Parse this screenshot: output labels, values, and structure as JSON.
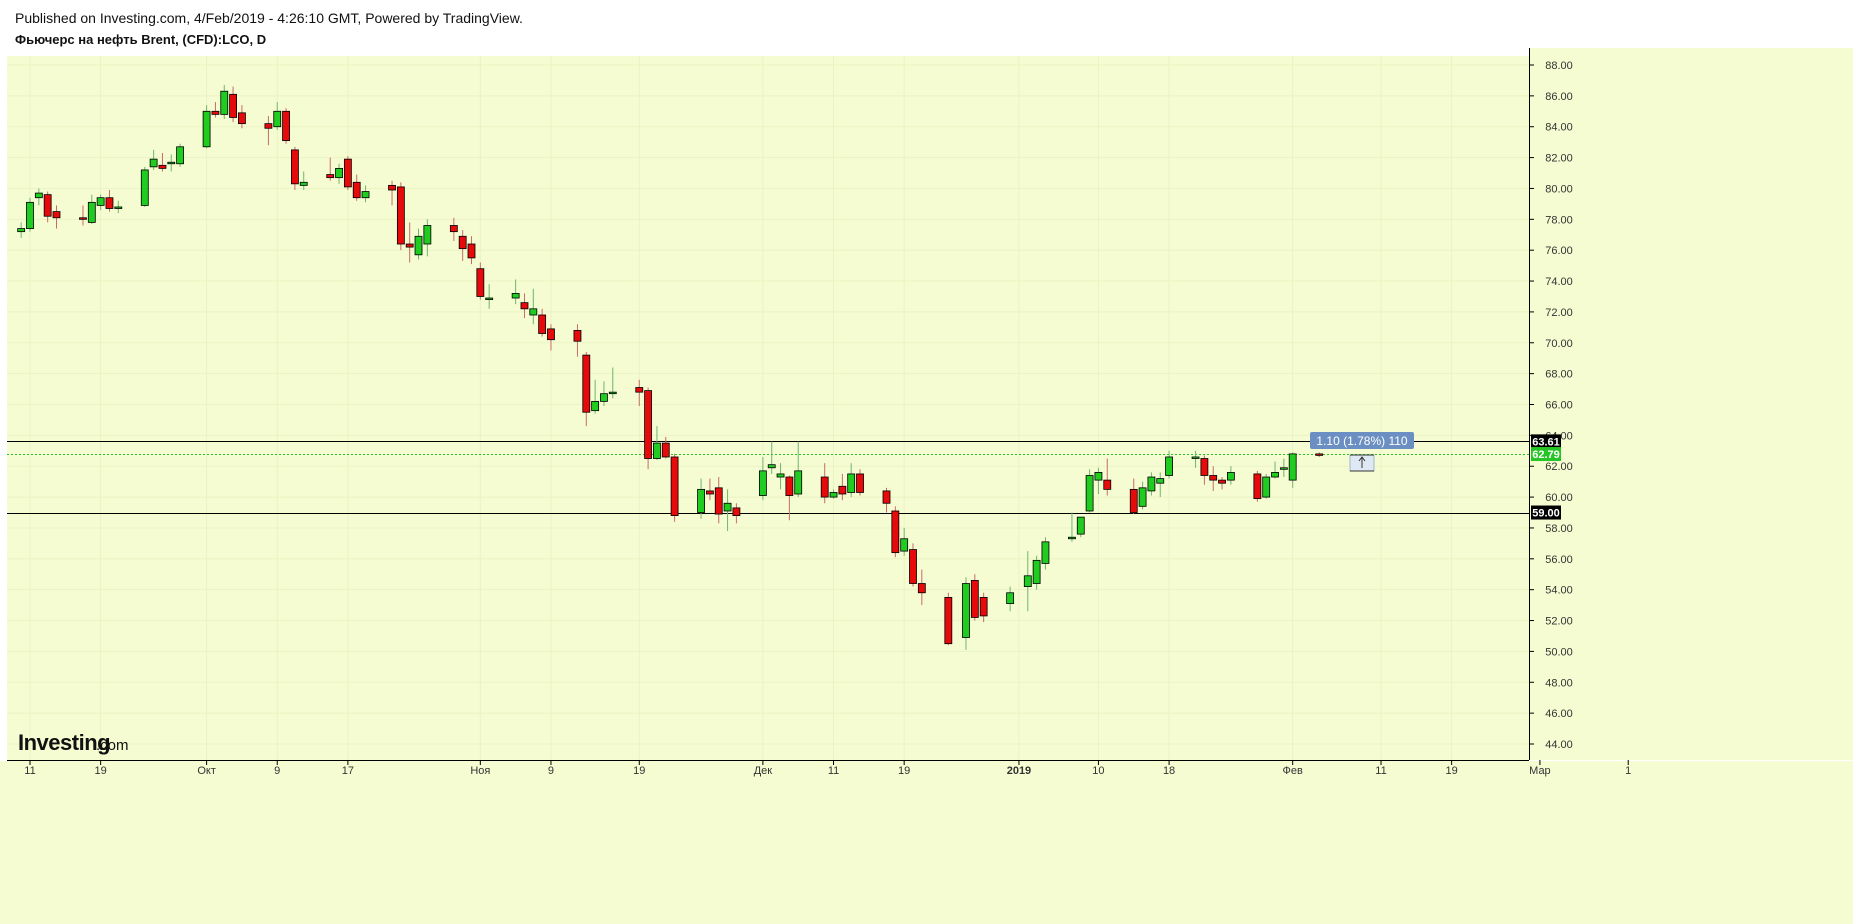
{
  "header": {
    "published": "Published on Investing.com, 4/Feb/2019 - 4:26:10 GMT, Powered by TradingView.",
    "symbol": "Фьючерс на нефть Brent, (CFD):LCO, D"
  },
  "logo": {
    "name": "Investing",
    "suffix": ".com"
  },
  "colors": {
    "background": "#f5fcd2",
    "grid": "#eaf3c2",
    "up": "#1fcc1f",
    "down": "#e60a0a",
    "border": "#000000",
    "current_price_line": "#27c427",
    "measure_box": "#6b8fc2"
  },
  "horizontal_lines": [
    {
      "price": 63.61,
      "label": "63.61"
    },
    {
      "price": 59.0,
      "label": "59.00"
    }
  ],
  "current_price": {
    "price": 62.79,
    "label": "62.79"
  },
  "measure": {
    "text": "1.10 (1.78%) 110"
  },
  "chart_data": {
    "type": "candlestick",
    "title": "Фьючерс на нефть Brent, (CFD):LCO, D",
    "ylim": [
      43,
      89
    ],
    "y_ticks": [
      "44.00",
      "46.00",
      "48.00",
      "50.00",
      "52.00",
      "54.00",
      "56.00",
      "58.00",
      "60.00",
      "62.00",
      "64.00",
      "66.00",
      "68.00",
      "70.00",
      "72.00",
      "74.00",
      "76.00",
      "78.00",
      "80.00",
      "82.00",
      "84.00",
      "86.00",
      "88.00"
    ],
    "x_ticks": [
      {
        "label": "11",
        "date": "2018-09-11"
      },
      {
        "label": "19",
        "date": "2018-09-19"
      },
      {
        "label": "Окт",
        "date": "2018-10-01"
      },
      {
        "label": "9",
        "date": "2018-10-09"
      },
      {
        "label": "17",
        "date": "2018-10-17"
      },
      {
        "label": "Ноя",
        "date": "2018-11-01"
      },
      {
        "label": "9",
        "date": "2018-11-09"
      },
      {
        "label": "19",
        "date": "2018-11-19"
      },
      {
        "label": "Дек",
        "date": "2018-12-03"
      },
      {
        "label": "11",
        "date": "2018-12-11"
      },
      {
        "label": "19",
        "date": "2018-12-19"
      },
      {
        "label": "2019",
        "date": "2019-01-01",
        "bold": true
      },
      {
        "label": "10",
        "date": "2019-01-10"
      },
      {
        "label": "18",
        "date": "2019-01-18"
      },
      {
        "label": "Фев",
        "date": "2019-02-01"
      },
      {
        "label": "11",
        "date": "2019-02-11"
      },
      {
        "label": "19",
        "date": "2019-02-19"
      },
      {
        "label": "Мар",
        "date": "2019-03-01"
      },
      {
        "label": "1",
        "date": "2019-03-11"
      }
    ],
    "candles": [
      {
        "date": "2018-09-07",
        "o": 76.9,
        "h": 77.3,
        "l": 76.7,
        "c": 77.2
      },
      {
        "date": "2018-09-10",
        "o": 77.2,
        "h": 77.8,
        "l": 76.8,
        "c": 77.4
      },
      {
        "date": "2018-09-11",
        "o": 77.4,
        "h": 79.4,
        "l": 77.2,
        "c": 79.1
      },
      {
        "date": "2018-09-12",
        "o": 79.4,
        "h": 80.0,
        "l": 78.9,
        "c": 79.7
      },
      {
        "date": "2018-09-13",
        "o": 79.6,
        "h": 79.8,
        "l": 77.8,
        "c": 78.2
      },
      {
        "date": "2018-09-14",
        "o": 78.5,
        "h": 78.9,
        "l": 77.4,
        "c": 78.1
      },
      {
        "date": "2018-09-17",
        "o": 78.1,
        "h": 78.9,
        "l": 77.6,
        "c": 78.0
      },
      {
        "date": "2018-09-18",
        "o": 77.8,
        "h": 79.6,
        "l": 77.7,
        "c": 79.1
      },
      {
        "date": "2018-09-19",
        "o": 78.9,
        "h": 79.6,
        "l": 78.6,
        "c": 79.4
      },
      {
        "date": "2018-09-20",
        "o": 79.4,
        "h": 79.9,
        "l": 78.5,
        "c": 78.7
      },
      {
        "date": "2018-09-21",
        "o": 78.7,
        "h": 79.2,
        "l": 78.4,
        "c": 78.8
      },
      {
        "date": "2018-09-24",
        "o": 78.9,
        "h": 81.4,
        "l": 78.8,
        "c": 81.2
      },
      {
        "date": "2018-09-25",
        "o": 81.4,
        "h": 82.5,
        "l": 81.2,
        "c": 81.9
      },
      {
        "date": "2018-09-26",
        "o": 81.5,
        "h": 82.3,
        "l": 81.1,
        "c": 81.3
      },
      {
        "date": "2018-09-27",
        "o": 81.6,
        "h": 82.2,
        "l": 81.1,
        "c": 81.7
      },
      {
        "date": "2018-09-28",
        "o": 81.6,
        "h": 82.9,
        "l": 81.4,
        "c": 82.7
      },
      {
        "date": "2018-10-01",
        "o": 82.7,
        "h": 85.4,
        "l": 82.6,
        "c": 85.0
      },
      {
        "date": "2018-10-02",
        "o": 85.0,
        "h": 85.6,
        "l": 84.6,
        "c": 84.8
      },
      {
        "date": "2018-10-03",
        "o": 84.8,
        "h": 86.7,
        "l": 84.5,
        "c": 86.3
      },
      {
        "date": "2018-10-04",
        "o": 86.1,
        "h": 86.6,
        "l": 84.3,
        "c": 84.6
      },
      {
        "date": "2018-10-05",
        "o": 84.9,
        "h": 85.4,
        "l": 83.9,
        "c": 84.2
      },
      {
        "date": "2018-10-08",
        "o": 84.2,
        "h": 84.7,
        "l": 82.8,
        "c": 83.9
      },
      {
        "date": "2018-10-09",
        "o": 84.0,
        "h": 85.6,
        "l": 83.8,
        "c": 85.0
      },
      {
        "date": "2018-10-10",
        "o": 85.0,
        "h": 85.2,
        "l": 82.9,
        "c": 83.1
      },
      {
        "date": "2018-10-11",
        "o": 82.5,
        "h": 82.7,
        "l": 79.9,
        "c": 80.3
      },
      {
        "date": "2018-10-12",
        "o": 80.2,
        "h": 81.1,
        "l": 79.9,
        "c": 80.4
      },
      {
        "date": "2018-10-15",
        "o": 80.9,
        "h": 82.0,
        "l": 80.5,
        "c": 80.7
      },
      {
        "date": "2018-10-16",
        "o": 80.7,
        "h": 81.6,
        "l": 80.3,
        "c": 81.3
      },
      {
        "date": "2018-10-17",
        "o": 81.9,
        "h": 82.1,
        "l": 79.9,
        "c": 80.1
      },
      {
        "date": "2018-10-18",
        "o": 80.4,
        "h": 80.9,
        "l": 79.2,
        "c": 79.4
      },
      {
        "date": "2018-10-19",
        "o": 79.4,
        "h": 80.2,
        "l": 79.1,
        "c": 79.8
      },
      {
        "date": "2018-10-22",
        "o": 80.2,
        "h": 80.5,
        "l": 78.9,
        "c": 79.9
      },
      {
        "date": "2018-10-23",
        "o": 80.1,
        "h": 80.4,
        "l": 76.0,
        "c": 76.4
      },
      {
        "date": "2018-10-24",
        "o": 76.4,
        "h": 77.8,
        "l": 75.2,
        "c": 76.2
      },
      {
        "date": "2018-10-25",
        "o": 75.7,
        "h": 77.4,
        "l": 75.4,
        "c": 76.9
      },
      {
        "date": "2018-10-26",
        "o": 76.4,
        "h": 78.0,
        "l": 75.6,
        "c": 77.6
      },
      {
        "date": "2018-10-29",
        "o": 77.6,
        "h": 78.1,
        "l": 76.6,
        "c": 77.2
      },
      {
        "date": "2018-10-30",
        "o": 76.9,
        "h": 77.3,
        "l": 75.3,
        "c": 76.1
      },
      {
        "date": "2018-10-31",
        "o": 76.4,
        "h": 76.9,
        "l": 75.1,
        "c": 75.5
      },
      {
        "date": "2018-11-01",
        "o": 74.8,
        "h": 75.2,
        "l": 72.8,
        "c": 73.0
      },
      {
        "date": "2018-11-02",
        "o": 72.8,
        "h": 73.8,
        "l": 72.2,
        "c": 72.9
      },
      {
        "date": "2018-11-05",
        "o": 72.9,
        "h": 74.1,
        "l": 72.5,
        "c": 73.2
      },
      {
        "date": "2018-11-06",
        "o": 72.6,
        "h": 73.2,
        "l": 71.6,
        "c": 72.2
      },
      {
        "date": "2018-11-07",
        "o": 71.8,
        "h": 73.5,
        "l": 71.2,
        "c": 72.2
      },
      {
        "date": "2018-11-08",
        "o": 71.8,
        "h": 72.2,
        "l": 70.4,
        "c": 70.6
      },
      {
        "date": "2018-11-09",
        "o": 70.9,
        "h": 71.2,
        "l": 69.5,
        "c": 70.2
      },
      {
        "date": "2018-11-12",
        "o": 70.8,
        "h": 71.2,
        "l": 69.1,
        "c": 70.1
      },
      {
        "date": "2018-11-13",
        "o": 69.2,
        "h": 69.4,
        "l": 64.6,
        "c": 65.5
      },
      {
        "date": "2018-11-14",
        "o": 65.6,
        "h": 67.6,
        "l": 65.4,
        "c": 66.2
      },
      {
        "date": "2018-11-15",
        "o": 66.2,
        "h": 67.5,
        "l": 65.9,
        "c": 66.7
      },
      {
        "date": "2018-11-16",
        "o": 66.7,
        "h": 68.4,
        "l": 66.4,
        "c": 66.8
      },
      {
        "date": "2018-11-19",
        "o": 67.1,
        "h": 67.6,
        "l": 65.9,
        "c": 66.8
      },
      {
        "date": "2018-11-20",
        "o": 66.9,
        "h": 67.1,
        "l": 61.8,
        "c": 62.5
      },
      {
        "date": "2018-11-21",
        "o": 62.5,
        "h": 64.6,
        "l": 62.4,
        "c": 63.5
      },
      {
        "date": "2018-11-22",
        "o": 63.5,
        "h": 63.9,
        "l": 62.5,
        "c": 62.6
      },
      {
        "date": "2018-11-23",
        "o": 62.6,
        "h": 62.8,
        "l": 58.4,
        "c": 58.8
      },
      {
        "date": "2018-11-26",
        "o": 59.0,
        "h": 61.2,
        "l": 58.6,
        "c": 60.5
      },
      {
        "date": "2018-11-27",
        "o": 60.4,
        "h": 61.2,
        "l": 59.8,
        "c": 60.2
      },
      {
        "date": "2018-11-28",
        "o": 60.6,
        "h": 61.3,
        "l": 58.3,
        "c": 58.9
      },
      {
        "date": "2018-11-29",
        "o": 59.1,
        "h": 60.5,
        "l": 57.8,
        "c": 59.6
      },
      {
        "date": "2018-11-30",
        "o": 59.3,
        "h": 59.6,
        "l": 58.3,
        "c": 58.8
      },
      {
        "date": "2018-12-03",
        "o": 60.1,
        "h": 62.6,
        "l": 59.8,
        "c": 61.7
      },
      {
        "date": "2018-12-04",
        "o": 61.9,
        "h": 63.6,
        "l": 61.5,
        "c": 62.1
      },
      {
        "date": "2018-12-05",
        "o": 61.3,
        "h": 62.2,
        "l": 60.5,
        "c": 61.5
      },
      {
        "date": "2018-12-06",
        "o": 61.3,
        "h": 61.4,
        "l": 58.5,
        "c": 60.1
      },
      {
        "date": "2018-12-07",
        "o": 60.2,
        "h": 63.6,
        "l": 60.0,
        "c": 61.7
      },
      {
        "date": "2018-12-10",
        "o": 61.3,
        "h": 62.2,
        "l": 59.6,
        "c": 60.0
      },
      {
        "date": "2018-12-11",
        "o": 60.0,
        "h": 60.5,
        "l": 59.9,
        "c": 60.3
      },
      {
        "date": "2018-12-12",
        "o": 60.7,
        "h": 61.5,
        "l": 59.8,
        "c": 60.2
      },
      {
        "date": "2018-12-13",
        "o": 60.3,
        "h": 62.2,
        "l": 60.0,
        "c": 61.5
      },
      {
        "date": "2018-12-14",
        "o": 61.5,
        "h": 61.8,
        "l": 60.1,
        "c": 60.3
      },
      {
        "date": "2018-12-17",
        "o": 60.4,
        "h": 60.6,
        "l": 59.0,
        "c": 59.6
      },
      {
        "date": "2018-12-18",
        "o": 59.1,
        "h": 59.4,
        "l": 56.1,
        "c": 56.4
      },
      {
        "date": "2018-12-19",
        "o": 56.5,
        "h": 58.0,
        "l": 56.2,
        "c": 57.3
      },
      {
        "date": "2018-12-20",
        "o": 56.6,
        "h": 57.0,
        "l": 54.2,
        "c": 54.4
      },
      {
        "date": "2018-12-21",
        "o": 54.4,
        "h": 55.3,
        "l": 53.0,
        "c": 53.8
      },
      {
        "date": "2018-12-24",
        "o": 53.5,
        "h": 53.8,
        "l": 50.4,
        "c": 50.5
      },
      {
        "date": "2018-12-26",
        "o": 50.9,
        "h": 54.8,
        "l": 50.1,
        "c": 54.4
      },
      {
        "date": "2018-12-27",
        "o": 54.6,
        "h": 55.0,
        "l": 52.0,
        "c": 52.2
      },
      {
        "date": "2018-12-28",
        "o": 53.5,
        "h": 53.8,
        "l": 51.9,
        "c": 52.3
      },
      {
        "date": "2018-12-31",
        "o": 53.1,
        "h": 54.2,
        "l": 52.6,
        "c": 53.8
      },
      {
        "date": "2019-01-02",
        "o": 54.2,
        "h": 56.5,
        "l": 52.6,
        "c": 54.9
      },
      {
        "date": "2019-01-03",
        "o": 54.4,
        "h": 56.2,
        "l": 54.0,
        "c": 55.9
      },
      {
        "date": "2019-01-04",
        "o": 55.7,
        "h": 57.4,
        "l": 55.3,
        "c": 57.1
      },
      {
        "date": "2019-01-07",
        "o": 57.3,
        "h": 59.0,
        "l": 57.1,
        "c": 57.4
      },
      {
        "date": "2019-01-08",
        "o": 57.6,
        "h": 58.7,
        "l": 57.4,
        "c": 58.7
      },
      {
        "date": "2019-01-09",
        "o": 59.1,
        "h": 61.8,
        "l": 59.0,
        "c": 61.4
      },
      {
        "date": "2019-01-10",
        "o": 61.1,
        "h": 61.9,
        "l": 60.2,
        "c": 61.6
      },
      {
        "date": "2019-01-11",
        "o": 61.1,
        "h": 62.5,
        "l": 60.1,
        "c": 60.5
      },
      {
        "date": "2019-01-14",
        "o": 60.5,
        "h": 61.2,
        "l": 58.9,
        "c": 59.0
      },
      {
        "date": "2019-01-15",
        "o": 59.4,
        "h": 61.0,
        "l": 59.2,
        "c": 60.6
      },
      {
        "date": "2019-01-16",
        "o": 60.4,
        "h": 61.6,
        "l": 60.1,
        "c": 61.3
      },
      {
        "date": "2019-01-17",
        "o": 60.9,
        "h": 61.6,
        "l": 60.0,
        "c": 61.2
      },
      {
        "date": "2019-01-18",
        "o": 61.4,
        "h": 63.0,
        "l": 61.2,
        "c": 62.6
      },
      {
        "date": "2019-01-21",
        "o": 62.5,
        "h": 63.0,
        "l": 61.9,
        "c": 62.6
      },
      {
        "date": "2019-01-22",
        "o": 62.5,
        "h": 62.7,
        "l": 60.8,
        "c": 61.4
      },
      {
        "date": "2019-01-23",
        "o": 61.4,
        "h": 62.0,
        "l": 60.4,
        "c": 61.1
      },
      {
        "date": "2019-01-24",
        "o": 61.1,
        "h": 61.3,
        "l": 60.5,
        "c": 60.9
      },
      {
        "date": "2019-01-25",
        "o": 61.1,
        "h": 62.0,
        "l": 60.8,
        "c": 61.6
      },
      {
        "date": "2019-01-28",
        "o": 61.5,
        "h": 61.7,
        "l": 59.7,
        "c": 59.9
      },
      {
        "date": "2019-01-29",
        "o": 60.0,
        "h": 61.5,
        "l": 59.9,
        "c": 61.3
      },
      {
        "date": "2019-01-30",
        "o": 61.3,
        "h": 62.3,
        "l": 61.2,
        "c": 61.6
      },
      {
        "date": "2019-01-31",
        "o": 61.8,
        "h": 62.5,
        "l": 61.3,
        "c": 61.9
      },
      {
        "date": "2019-02-01",
        "o": 61.1,
        "h": 62.9,
        "l": 60.6,
        "c": 62.8
      },
      {
        "date": "2019-02-04",
        "o": 62.8,
        "h": 62.9,
        "l": 62.6,
        "c": 62.79
      }
    ]
  }
}
